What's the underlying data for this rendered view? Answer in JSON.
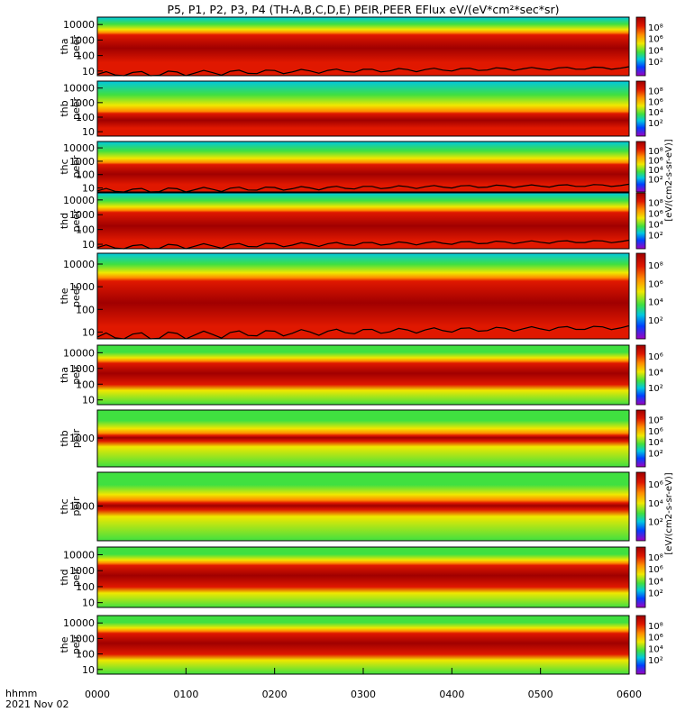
{
  "title": "P5, P1, P2, P3, P4 (TH-A,B,C,D,E) PEIR,PEER EFlux eV/(eV*cm²*sec*sr)",
  "xaxis": {
    "tick_labels": [
      "0000",
      "0100",
      "0200",
      "0300",
      "0400",
      "0500",
      "0600"
    ],
    "corner_label": "hhmm",
    "date_label": "2021 Nov 02"
  },
  "colorbar": {
    "ticks_7": [
      "10⁸",
      "10⁶",
      "10⁴",
      "10²"
    ],
    "ticks_6": [
      "10⁶",
      "10⁴",
      "10²"
    ],
    "unit_peer": "[eV/(cm2-s-sr-eV)]",
    "unit_peir": "[eV/(cm2-s-sr-eV)]"
  },
  "colors": {
    "dark_red": "#a00000",
    "red": "#e01800",
    "orange": "#ff8c00",
    "yellow": "#f0e800",
    "green": "#40e040",
    "cyan": "#00c8e0",
    "blue": "#0040ff",
    "magenta": "#a000c0",
    "white": "#ffffff"
  },
  "chart_data": {
    "type": "heatmap",
    "x_range_hhmm": [
      "0000",
      "0600"
    ],
    "panels": [
      {
        "name": "tha peer",
        "label_line1": "tha",
        "label_line2": "peer",
        "ylog": true,
        "yrange": [
          5,
          30000
        ],
        "yticks": [
          "10000",
          "1000",
          "100",
          "10"
        ],
        "core_band": [
          30,
          3000
        ],
        "cbar_ticks": "ticks_7",
        "flux_peak": "1e8",
        "scpot_curve": true
      },
      {
        "name": "thb peer",
        "label_line1": "thb",
        "label_line2": "peer",
        "ylog": true,
        "yrange": [
          5,
          30000
        ],
        "yticks": [
          "10000",
          "1000",
          "100",
          "10"
        ],
        "core_band": [
          15,
          250
        ],
        "cbar_ticks": "ticks_7",
        "flux_peak": "1e8",
        "scpot_curve": false
      },
      {
        "name": "thc peer",
        "label_line1": "thc",
        "label_line2": "peer",
        "ylog": true,
        "yrange": [
          5,
          30000
        ],
        "yticks": [
          "10000",
          "1000",
          "100",
          "10"
        ],
        "core_band": [
          15,
          800
        ],
        "cbar_ticks": "ticks_7",
        "flux_peak": "1e8",
        "scpot_curve": true
      },
      {
        "name": "thd peer",
        "label_line1": "thd",
        "label_line2": "peer",
        "ylog": true,
        "yrange": [
          5,
          30000
        ],
        "yticks": [
          "10000",
          "1000",
          "100",
          "10"
        ],
        "core_band": [
          15,
          2000
        ],
        "cbar_ticks": "ticks_7",
        "flux_peak": "1e8",
        "scpot_curve": true
      },
      {
        "name": "the peer",
        "label_line1": "the",
        "label_line2": "peer",
        "ylog": true,
        "yrange": [
          5,
          30000
        ],
        "yticks": [
          "10000",
          "1000",
          "100",
          "10"
        ],
        "core_band": [
          15,
          2500
        ],
        "cbar_ticks": "ticks_7",
        "flux_peak": "1e8",
        "scpot_curve": true
      },
      {
        "name": "tha peir",
        "label_line1": "tha",
        "label_line2": "peir",
        "ylog": true,
        "yrange": [
          5,
          30000
        ],
        "yticks": [
          "10000",
          "1000",
          "100",
          "10"
        ],
        "core_band": [
          80,
          3000
        ],
        "cbar_ticks": "ticks_6",
        "flux_peak": "1e6",
        "scpot_curve": false
      },
      {
        "name": "thb peir",
        "label_line1": "thb",
        "label_line2": "peir",
        "ylog": true,
        "yrange": [
          30,
          30000
        ],
        "yticks": [
          "1000"
        ],
        "core_band": [
          600,
          1800
        ],
        "cbar_ticks": "ticks_7",
        "flux_peak": "1e8",
        "scpot_curve": false
      },
      {
        "name": "thc peir",
        "label_line1": "thc",
        "label_line2": "peir",
        "ylog": true,
        "yrange": [
          30,
          30000
        ],
        "yticks": [
          "1000"
        ],
        "core_band": [
          600,
          1800
        ],
        "cbar_ticks": "ticks_6",
        "flux_peak": "1e6",
        "scpot_curve": false
      },
      {
        "name": "thd peir",
        "label_line1": "thd",
        "label_line2": "peir",
        "ylog": true,
        "yrange": [
          5,
          30000
        ],
        "yticks": [
          "10000",
          "1000",
          "100",
          "10"
        ],
        "core_band": [
          80,
          3000
        ],
        "cbar_ticks": "ticks_7",
        "flux_peak": "1e8",
        "scpot_curve": false
      },
      {
        "name": "the peir",
        "label_line1": "the",
        "label_line2": "peir",
        "ylog": true,
        "yrange": [
          5,
          30000
        ],
        "yticks": [
          "10000",
          "1000",
          "100",
          "10"
        ],
        "core_band": [
          80,
          3000
        ],
        "cbar_ticks": "ticks_7",
        "flux_peak": "1e8",
        "scpot_curve": false
      }
    ]
  }
}
